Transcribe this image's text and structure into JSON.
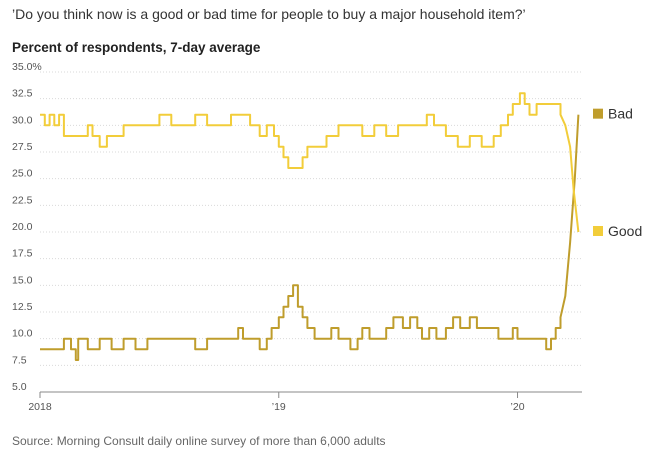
{
  "question": "’Do you think now is a good or bad time for people to buy a major household item?’",
  "subtitle": "Percent of respondents, 7-day average",
  "source": "Source: Morning Consult daily online survey of more than 6,000 adults",
  "chart_data": {
    "type": "line",
    "title": "’Do you think now is a good or bad time for people to buy a major household item?’",
    "subtitle": "Percent of respondents, 7-day average",
    "xlabel": "",
    "ylabel": "",
    "x_ticks": [
      "2018",
      "’19",
      "’20"
    ],
    "x_tick_positions": [
      2018.0,
      2019.0,
      2020.0
    ],
    "xlim": [
      2018.0,
      2020.27
    ],
    "ylim": [
      5.0,
      35.0
    ],
    "y_ticks": [
      5.0,
      7.5,
      10.0,
      12.5,
      15.0,
      17.5,
      20.0,
      22.5,
      25.0,
      27.5,
      30.0,
      32.5,
      35.0
    ],
    "y_tick_labels": [
      "5.0",
      "7.5",
      "10.0",
      "12.5",
      "15.0",
      "17.5",
      "20.0",
      "22.5",
      "25.0",
      "27.5",
      "30.0",
      "32.5",
      "35.0%"
    ],
    "grid": true,
    "legend": "right, labels at line ends",
    "series": [
      {
        "name": "Bad",
        "color": "#BF9D2C",
        "points": [
          [
            2018.0,
            9
          ],
          [
            2018.08,
            9
          ],
          [
            2018.1,
            10
          ],
          [
            2018.13,
            9
          ],
          [
            2018.15,
            8
          ],
          [
            2018.16,
            10
          ],
          [
            2018.2,
            9
          ],
          [
            2018.25,
            10
          ],
          [
            2018.3,
            9
          ],
          [
            2018.35,
            10
          ],
          [
            2018.4,
            9
          ],
          [
            2018.45,
            10
          ],
          [
            2018.5,
            10
          ],
          [
            2018.55,
            10
          ],
          [
            2018.6,
            10
          ],
          [
            2018.65,
            9
          ],
          [
            2018.7,
            10
          ],
          [
            2018.75,
            10
          ],
          [
            2018.82,
            10
          ],
          [
            2018.83,
            11
          ],
          [
            2018.85,
            10
          ],
          [
            2018.9,
            10
          ],
          [
            2018.92,
            9
          ],
          [
            2018.95,
            10
          ],
          [
            2018.97,
            11
          ],
          [
            2019.0,
            12
          ],
          [
            2019.02,
            13
          ],
          [
            2019.04,
            14
          ],
          [
            2019.06,
            15
          ],
          [
            2019.08,
            13
          ],
          [
            2019.1,
            12
          ],
          [
            2019.12,
            11
          ],
          [
            2019.15,
            10
          ],
          [
            2019.2,
            10
          ],
          [
            2019.22,
            11
          ],
          [
            2019.25,
            10
          ],
          [
            2019.3,
            10
          ],
          [
            2019.3,
            9
          ],
          [
            2019.33,
            10
          ],
          [
            2019.35,
            11
          ],
          [
            2019.38,
            10
          ],
          [
            2019.42,
            10
          ],
          [
            2019.45,
            11
          ],
          [
            2019.48,
            12
          ],
          [
            2019.52,
            11
          ],
          [
            2019.55,
            12
          ],
          [
            2019.58,
            11
          ],
          [
            2019.6,
            10
          ],
          [
            2019.63,
            11
          ],
          [
            2019.66,
            10
          ],
          [
            2019.7,
            11
          ],
          [
            2019.73,
            12
          ],
          [
            2019.76,
            11
          ],
          [
            2019.8,
            12
          ],
          [
            2019.83,
            11
          ],
          [
            2019.86,
            11
          ],
          [
            2019.9,
            11
          ],
          [
            2019.92,
            10
          ],
          [
            2019.95,
            10
          ],
          [
            2019.98,
            11
          ],
          [
            2020.0,
            10
          ],
          [
            2020.05,
            10
          ],
          [
            2020.1,
            10
          ],
          [
            2020.12,
            9
          ],
          [
            2020.14,
            10
          ],
          [
            2020.16,
            11
          ],
          [
            2020.18,
            12
          ],
          [
            2020.2,
            14
          ],
          [
            2020.22,
            19
          ],
          [
            2020.24,
            25
          ],
          [
            2020.255,
            31
          ]
        ]
      },
      {
        "name": "Good",
        "color": "#F2CD3A",
        "points": [
          [
            2018.0,
            31
          ],
          [
            2018.02,
            30
          ],
          [
            2018.04,
            31
          ],
          [
            2018.06,
            30
          ],
          [
            2018.08,
            31
          ],
          [
            2018.1,
            29
          ],
          [
            2018.15,
            29
          ],
          [
            2018.2,
            30
          ],
          [
            2018.22,
            29
          ],
          [
            2018.25,
            28
          ],
          [
            2018.28,
            29
          ],
          [
            2018.32,
            29
          ],
          [
            2018.35,
            30
          ],
          [
            2018.4,
            30
          ],
          [
            2018.45,
            30
          ],
          [
            2018.5,
            31
          ],
          [
            2018.55,
            30
          ],
          [
            2018.6,
            30
          ],
          [
            2018.65,
            31
          ],
          [
            2018.7,
            30
          ],
          [
            2018.75,
            30
          ],
          [
            2018.8,
            31
          ],
          [
            2018.85,
            31
          ],
          [
            2018.88,
            30
          ],
          [
            2018.92,
            29
          ],
          [
            2018.95,
            30
          ],
          [
            2018.98,
            29
          ],
          [
            2019.0,
            28
          ],
          [
            2019.02,
            27
          ],
          [
            2019.04,
            26
          ],
          [
            2019.08,
            26
          ],
          [
            2019.1,
            27
          ],
          [
            2019.12,
            28
          ],
          [
            2019.15,
            28
          ],
          [
            2019.2,
            29
          ],
          [
            2019.25,
            30
          ],
          [
            2019.3,
            30
          ],
          [
            2019.35,
            29
          ],
          [
            2019.4,
            30
          ],
          [
            2019.45,
            29
          ],
          [
            2019.5,
            30
          ],
          [
            2019.55,
            30
          ],
          [
            2019.6,
            30
          ],
          [
            2019.62,
            31
          ],
          [
            2019.65,
            30
          ],
          [
            2019.7,
            29
          ],
          [
            2019.75,
            28
          ],
          [
            2019.8,
            29
          ],
          [
            2019.85,
            28
          ],
          [
            2019.9,
            29
          ],
          [
            2019.93,
            30
          ],
          [
            2019.96,
            31
          ],
          [
            2019.98,
            32
          ],
          [
            2020.0,
            32
          ],
          [
            2020.01,
            33
          ],
          [
            2020.03,
            32
          ],
          [
            2020.05,
            31
          ],
          [
            2020.08,
            32
          ],
          [
            2020.12,
            32
          ],
          [
            2020.16,
            32
          ],
          [
            2020.18,
            31
          ],
          [
            2020.2,
            30
          ],
          [
            2020.22,
            28
          ],
          [
            2020.235,
            24
          ],
          [
            2020.245,
            22
          ],
          [
            2020.255,
            20
          ]
        ]
      }
    ]
  }
}
